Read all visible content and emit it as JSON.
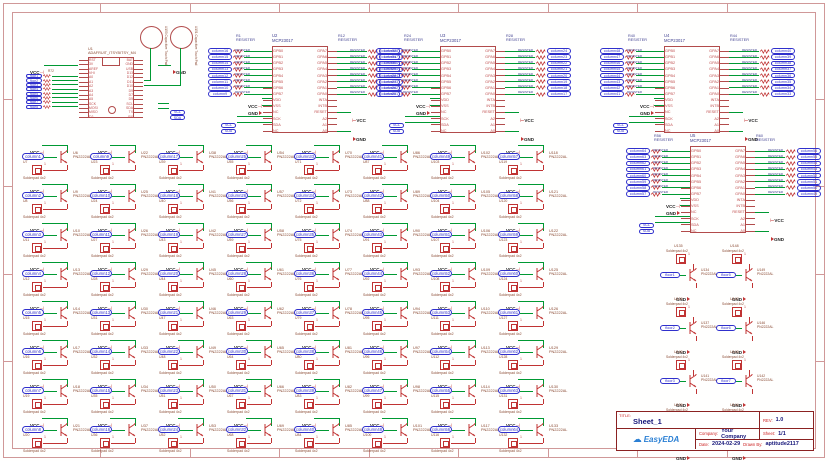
{
  "colors": {
    "wire": "#009933",
    "npn": "#c03333",
    "symbol": "#b24b4b",
    "pintext": "#c05050",
    "net": "#3030cc",
    "designator": "#8a4a33",
    "chiptitle": "#3f3f8f",
    "frame": "#d09898",
    "frametext": "#b03030",
    "tborder": "#8b2222",
    "tlabel": "#cc2222",
    "tvalue": "#16167a",
    "logo": "#2a7fd4"
  },
  "frame": {
    "cols": [
      "1",
      "2",
      "3",
      "4",
      "5",
      "6",
      "7",
      "8",
      "9"
    ],
    "rows": [
      "A",
      "B",
      "C",
      "D",
      "E"
    ]
  },
  "res_value": "RESISTER",
  "pad_pin": "1",
  "q_part": "PN2222AL",
  "pad_part": "Solderpad 4x2",
  "vcc": "VCC",
  "gnd": "GND",
  "itsy": {
    "ref": "U1",
    "part": "ADAFRUIT_ITSYBITSY_M4",
    "res_ref": "R72",
    "scl": "SCL",
    "sda": "SDA",
    "pins_left": [
      "RST",
      "3V",
      "AREF",
      "VHI",
      "A0",
      "A1",
      "A2",
      "A3",
      "A4",
      "A5",
      "SCK",
      "MOSI",
      "MISO",
      "D2"
    ],
    "pins_right": [
      "BAT",
      "GND",
      "USB",
      "D13",
      "D12",
      "D11",
      "D10",
      "D9",
      "D7",
      "D5",
      "SCL",
      "SDA",
      "TX",
      "RX"
    ],
    "floors": [
      "floor1",
      "floor2",
      "floor3",
      "floor4",
      "floor5",
      "floor6",
      "floor7",
      "floor8"
    ]
  },
  "touchpads": [
    {
      "ref": "U150",
      "part": "Capacitive Touch Pad"
    },
    {
      "ref": "U151",
      "part": "Capacitive Touch Pad"
    }
  ],
  "mcp": {
    "part": "MCP23017",
    "scl": "SCL",
    "sda": "SDA",
    "pins_left": [
      "GPB0",
      "GPB1",
      "GPB2",
      "GPB3",
      "GPB4",
      "GPB5",
      "GPB6",
      "GPB7",
      "VDD",
      "VSS",
      "NC",
      "SCK",
      "SDA",
      "NC"
    ],
    "pins_right": [
      "GPA7",
      "GPA6",
      "GPA5",
      "GPA4",
      "GPA3",
      "GPA2",
      "GPA1",
      "GPA0",
      "INTA",
      "INTB",
      "RESET",
      "A2",
      "A1",
      "A0"
    ],
    "blocks": [
      {
        "ref": "U2",
        "lres": "R1",
        "rres": "R12",
        "left_cols": [
          "column16",
          "column15",
          "column14",
          "column13",
          "column12",
          "column11",
          "column10",
          "column9"
        ],
        "right_cols": [
          "column8",
          "column7",
          "column6",
          "column5",
          "column4",
          "column3",
          "column2",
          "column1"
        ]
      },
      {
        "ref": "U3",
        "lres": "R24",
        "rres": "R28",
        "left_cols": [
          "column32",
          "column31",
          "column30",
          "column29",
          "column28",
          "column27",
          "column26",
          "column25"
        ],
        "right_cols": [
          "column24",
          "column23",
          "column22",
          "column21",
          "column20",
          "column19",
          "column18",
          "column17"
        ]
      },
      {
        "ref": "U4",
        "lres": "R40",
        "rres": "R44",
        "left_cols": [
          "column48",
          "column47",
          "column46",
          "column45",
          "column44",
          "column43",
          "column42",
          "column41"
        ],
        "right_cols": [
          "column40",
          "column39",
          "column38",
          "column37",
          "column36",
          "column35",
          "column34",
          "column33"
        ]
      },
      {
        "ref": "U5",
        "lres": "R56",
        "rres": "R60",
        "left_cols": [
          "column64",
          "column63",
          "column62",
          "column61",
          "column60",
          "column59",
          "column58",
          "column57"
        ],
        "right_cols": [
          "column56",
          "column55",
          "column54",
          "column53",
          "column52",
          "column51",
          "column50",
          "column49"
        ]
      }
    ]
  },
  "grid_cells": [
    {
      "c": "column1",
      "q": "U6",
      "p": "U7"
    },
    {
      "c": "column9",
      "q": "U22",
      "p": "U23"
    },
    {
      "c": "column17",
      "q": "U38",
      "p": "U39"
    },
    {
      "c": "column25",
      "q": "U54",
      "p": "U55"
    },
    {
      "c": "column33",
      "q": "U70",
      "p": "U71"
    },
    {
      "c": "column41",
      "q": "U86",
      "p": "U87"
    },
    {
      "c": "column49",
      "q": "U102",
      "p": "U103"
    },
    {
      "c": "column57",
      "q": "U118",
      "p": "U119"
    },
    {
      "c": "column2",
      "q": "U9",
      "p": "U8"
    },
    {
      "c": "column10",
      "q": "U25",
      "p": "U24"
    },
    {
      "c": "column18",
      "q": "U41",
      "p": "U40"
    },
    {
      "c": "column26",
      "q": "U57",
      "p": "U56"
    },
    {
      "c": "column34",
      "q": "U73",
      "p": "U72"
    },
    {
      "c": "column42",
      "q": "U89",
      "p": "U88"
    },
    {
      "c": "column50",
      "q": "U105",
      "p": "U104"
    },
    {
      "c": "column58",
      "q": "U121",
      "p": "U120"
    },
    {
      "c": "column3",
      "q": "U10",
      "p": "U11"
    },
    {
      "c": "column11",
      "q": "U26",
      "p": "U27"
    },
    {
      "c": "column19",
      "q": "U42",
      "p": "U43"
    },
    {
      "c": "column27",
      "q": "U58",
      "p": "U59"
    },
    {
      "c": "column35",
      "q": "U74",
      "p": "U75"
    },
    {
      "c": "column43",
      "q": "U90",
      "p": "U91"
    },
    {
      "c": "column51",
      "q": "U106",
      "p": "U107"
    },
    {
      "c": "column59",
      "q": "U122",
      "p": "U123"
    },
    {
      "c": "column4",
      "q": "U13",
      "p": "U12"
    },
    {
      "c": "column12",
      "q": "U29",
      "p": "U28"
    },
    {
      "c": "column20",
      "q": "U45",
      "p": "U44"
    },
    {
      "c": "column28",
      "q": "U61",
      "p": "U60"
    },
    {
      "c": "column36",
      "q": "U77",
      "p": "U76"
    },
    {
      "c": "column44",
      "q": "U93",
      "p": "U92"
    },
    {
      "c": "column52",
      "q": "U109",
      "p": "U108"
    },
    {
      "c": "column60",
      "q": "U125",
      "p": "U124"
    },
    {
      "c": "column5",
      "q": "U14",
      "p": "U15"
    },
    {
      "c": "column13",
      "q": "U30",
      "p": "U31"
    },
    {
      "c": "column21",
      "q": "U46",
      "p": "U47"
    },
    {
      "c": "column29",
      "q": "U62",
      "p": "U63"
    },
    {
      "c": "column37",
      "q": "U78",
      "p": "U79"
    },
    {
      "c": "column45",
      "q": "U94",
      "p": "U95"
    },
    {
      "c": "column53",
      "q": "U110",
      "p": "U111"
    },
    {
      "c": "column61",
      "q": "U126",
      "p": "U127"
    },
    {
      "c": "column6",
      "q": "U17",
      "p": "U16"
    },
    {
      "c": "column14",
      "q": "U33",
      "p": "U32"
    },
    {
      "c": "column22",
      "q": "U49",
      "p": "U48"
    },
    {
      "c": "column30",
      "q": "U65",
      "p": "U64"
    },
    {
      "c": "column38",
      "q": "U81",
      "p": "U80"
    },
    {
      "c": "column46",
      "q": "U97",
      "p": "U96"
    },
    {
      "c": "column54",
      "q": "U113",
      "p": "U112"
    },
    {
      "c": "column62",
      "q": "U129",
      "p": "U128"
    },
    {
      "c": "column7",
      "q": "U18",
      "p": "U19"
    },
    {
      "c": "column15",
      "q": "U34",
      "p": "U35"
    },
    {
      "c": "column23",
      "q": "U50",
      "p": "U51"
    },
    {
      "c": "column31",
      "q": "U66",
      "p": "U67"
    },
    {
      "c": "column39",
      "q": "U82",
      "p": "U83"
    },
    {
      "c": "column47",
      "q": "U98",
      "p": "U99"
    },
    {
      "c": "column55",
      "q": "U114",
      "p": "U115"
    },
    {
      "c": "column63",
      "q": "U130",
      "p": "U131"
    },
    {
      "c": "column8",
      "q": "U21",
      "p": "U20"
    },
    {
      "c": "column16",
      "q": "U37",
      "p": "U36"
    },
    {
      "c": "column24",
      "q": "U53",
      "p": "U52"
    },
    {
      "c": "column32",
      "q": "U69",
      "p": "U68"
    },
    {
      "c": "column40",
      "q": "U85",
      "p": "U84"
    },
    {
      "c": "column48",
      "q": "U101",
      "p": "U100"
    },
    {
      "c": "column56",
      "q": "U117",
      "p": "U116"
    },
    {
      "c": "column64",
      "q": "U133",
      "p": "U132"
    }
  ],
  "floor_cells": [
    {
      "f": "floor1",
      "q": "U134",
      "p": "U135"
    },
    {
      "f": "floor5",
      "q": "U149",
      "p": "U148"
    },
    {
      "f": "floor2",
      "q": "U137",
      "p": "U136"
    },
    {
      "f": "floor6",
      "q": "U146",
      "p": "U147"
    },
    {
      "f": "floor3",
      "q": "U141",
      "p": "U140"
    },
    {
      "f": "floor7",
      "q": "U142",
      "p": "U143"
    },
    {
      "f": "floor4",
      "q": "U138",
      "p": "U139"
    },
    {
      "f": "floor8",
      "q": "U145",
      "p": "U144"
    }
  ],
  "title_block": {
    "title_label": "TITLE:",
    "title": "Sheet_1",
    "rev_label": "REV:",
    "rev": "1.0",
    "company_label": "Company:",
    "company": "Your Company",
    "sheet_label": "Sheet:",
    "sheet": "1/1",
    "date_label": "Date:",
    "date": "2024-02-29",
    "drawn_label": "Drawn By:",
    "drawn_by": "aptitude2117",
    "logo": "EasyEDA",
    "logo_icon": "☁"
  }
}
